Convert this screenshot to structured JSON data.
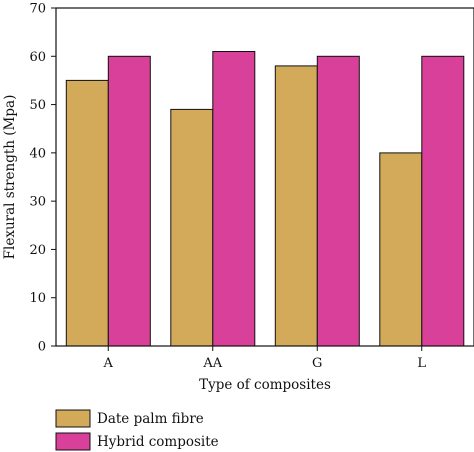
{
  "chart_data": {
    "type": "bar",
    "categories": [
      "A",
      "AA",
      "G",
      "L"
    ],
    "series": [
      {
        "name": "Date palm fibre",
        "values": [
          55,
          49,
          58,
          40
        ],
        "color": "#D2AA5A"
      },
      {
        "name": "Hybrid composite",
        "values": [
          60,
          61,
          60,
          60
        ],
        "color": "#D8409A"
      }
    ],
    "xlabel": "Type of composites",
    "ylabel": "Flexural strength (Mpa)",
    "ylim": [
      0,
      70
    ],
    "yticks": [
      0,
      10,
      20,
      30,
      40,
      50,
      60,
      70
    ],
    "grid": false,
    "legend_position": "bottom-left"
  }
}
